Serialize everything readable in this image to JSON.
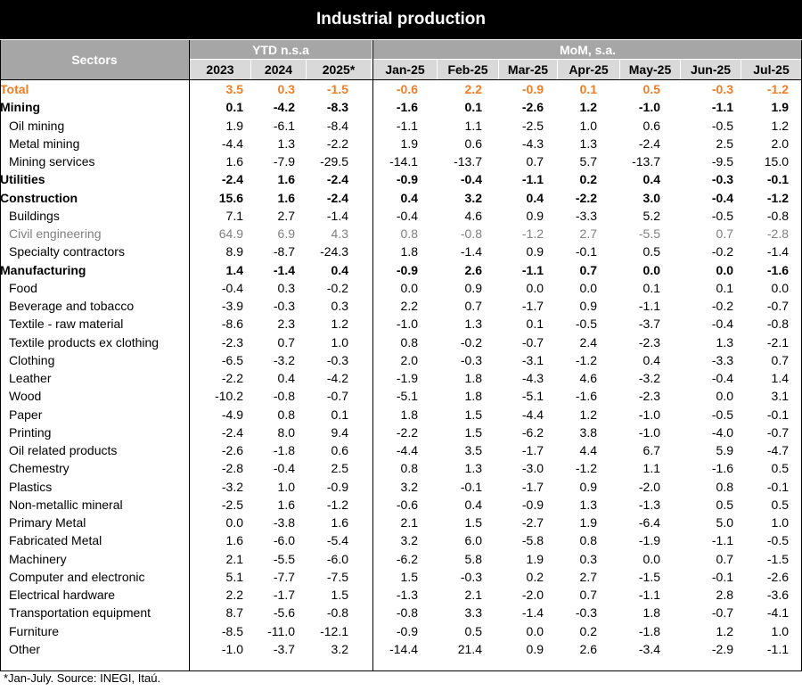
{
  "title": "Industrial production",
  "header": {
    "sectors": "Sectors",
    "ytd_group": "YTD n.s.a",
    "mom_group": "MoM, s.a.",
    "ytd_years": [
      "2023",
      "2024",
      "2025*"
    ],
    "mom_months": [
      "Jan-25",
      "Feb-25",
      "Mar-25",
      "Apr-25",
      "May-25",
      "Jun-25",
      "Jul-25"
    ]
  },
  "rows": [
    {
      "label": "Total",
      "style": "total",
      "ytd": [
        "3.5",
        "0.3",
        "-1.5"
      ],
      "mom": [
        "-0.6",
        "2.2",
        "-0.9",
        "0.1",
        "0.5",
        "-0.3",
        "-1.2"
      ]
    },
    {
      "label": "Mining",
      "style": "bold",
      "ytd": [
        "0.1",
        "-4.2",
        "-8.3"
      ],
      "mom": [
        "-1.6",
        "0.1",
        "-2.6",
        "1.2",
        "-1.0",
        "-1.1",
        "1.9"
      ]
    },
    {
      "label": "Oil mining",
      "style": "sub",
      "ytd": [
        "1.9",
        "-6.1",
        "-8.4"
      ],
      "mom": [
        "-1.1",
        "1.1",
        "-2.5",
        "1.0",
        "0.6",
        "-0.5",
        "1.2"
      ]
    },
    {
      "label": "Metal mining",
      "style": "sub",
      "ytd": [
        "-4.4",
        "1.3",
        "-2.2"
      ],
      "mom": [
        "1.9",
        "0.6",
        "-4.3",
        "1.3",
        "-2.4",
        "2.5",
        "2.0"
      ]
    },
    {
      "label": "Mining services",
      "style": "sub",
      "ytd": [
        "1.6",
        "-7.9",
        "-29.5"
      ],
      "mom": [
        "-14.1",
        "-13.7",
        "0.7",
        "5.7",
        "-13.7",
        "-9.5",
        "15.0"
      ]
    },
    {
      "label": "Utilities",
      "style": "bold",
      "ytd": [
        "-2.4",
        "1.6",
        "-2.4"
      ],
      "mom": [
        "-0.9",
        "-0.4",
        "-1.1",
        "0.2",
        "0.4",
        "-0.3",
        "-0.1"
      ]
    },
    {
      "label": "Construction",
      "style": "bold",
      "ytd": [
        "15.6",
        "1.6",
        "-2.4"
      ],
      "mom": [
        "0.4",
        "3.2",
        "0.4",
        "-2.2",
        "3.0",
        "-0.4",
        "-1.2"
      ]
    },
    {
      "label": "Buildings",
      "style": "sub",
      "ytd": [
        "7.1",
        "2.7",
        "-1.4"
      ],
      "mom": [
        "-0.4",
        "4.6",
        "0.9",
        "-3.3",
        "5.2",
        "-0.5",
        "-0.8"
      ]
    },
    {
      "label": "Civil engineering",
      "style": "sub-muted",
      "ytd": [
        "64.9",
        "6.9",
        "4.3"
      ],
      "mom": [
        "0.8",
        "-0.8",
        "-1.2",
        "2.7",
        "-5.5",
        "0.7",
        "-2.8"
      ]
    },
    {
      "label": "Specialty contractors",
      "style": "sub",
      "ytd": [
        "8.9",
        "-8.7",
        "-24.3"
      ],
      "mom": [
        "1.8",
        "-1.4",
        "0.9",
        "-0.1",
        "0.5",
        "-0.2",
        "-1.4"
      ]
    },
    {
      "label": "Manufacturing",
      "style": "bold",
      "ytd": [
        "1.4",
        "-1.4",
        "0.4"
      ],
      "mom": [
        "-0.9",
        "2.6",
        "-1.1",
        "0.7",
        "0.0",
        "0.0",
        "-1.6"
      ]
    },
    {
      "label": "Food",
      "style": "sub",
      "ytd": [
        "-0.4",
        "0.3",
        "-0.2"
      ],
      "mom": [
        "0.0",
        "0.9",
        "0.0",
        "0.0",
        "0.1",
        "0.1",
        "0.0"
      ]
    },
    {
      "label": "Beverage and tobacco",
      "style": "sub",
      "ytd": [
        "-3.9",
        "-0.3",
        "0.3"
      ],
      "mom": [
        "2.2",
        "0.7",
        "-1.7",
        "0.9",
        "-1.1",
        "-0.2",
        "-0.7"
      ]
    },
    {
      "label": "Textile - raw material",
      "style": "sub",
      "ytd": [
        "-8.6",
        "2.3",
        "1.2"
      ],
      "mom": [
        "-1.0",
        "1.3",
        "0.1",
        "-0.5",
        "-3.7",
        "-0.4",
        "-0.8"
      ]
    },
    {
      "label": "Textile products ex clothing",
      "style": "sub",
      "ytd": [
        "-2.3",
        "0.7",
        "1.0"
      ],
      "mom": [
        "0.8",
        "-0.2",
        "-0.7",
        "2.4",
        "-2.3",
        "1.3",
        "-2.1"
      ]
    },
    {
      "label": "Clothing",
      "style": "sub",
      "ytd": [
        "-6.5",
        "-3.2",
        "-0.3"
      ],
      "mom": [
        "2.0",
        "-0.3",
        "-3.1",
        "-1.2",
        "0.4",
        "-3.3",
        "0.7"
      ]
    },
    {
      "label": "Leather",
      "style": "sub",
      "ytd": [
        "-2.2",
        "0.4",
        "-4.2"
      ],
      "mom": [
        "-1.9",
        "1.8",
        "-4.3",
        "4.6",
        "-3.2",
        "-0.4",
        "1.4"
      ]
    },
    {
      "label": "Wood",
      "style": "sub",
      "ytd": [
        "-10.2",
        "-0.8",
        "-0.7"
      ],
      "mom": [
        "-5.1",
        "1.8",
        "-5.1",
        "-1.6",
        "-2.3",
        "0.0",
        "3.1"
      ]
    },
    {
      "label": "Paper",
      "style": "sub",
      "ytd": [
        "-4.9",
        "0.8",
        "0.1"
      ],
      "mom": [
        "1.8",
        "1.5",
        "-4.4",
        "1.2",
        "-1.0",
        "-0.5",
        "-0.1"
      ]
    },
    {
      "label": "Printing",
      "style": "sub",
      "ytd": [
        "-2.4",
        "8.0",
        "9.4"
      ],
      "mom": [
        "-2.2",
        "1.5",
        "-6.2",
        "3.8",
        "-1.0",
        "-4.0",
        "-0.7"
      ]
    },
    {
      "label": "Oil related products",
      "style": "sub",
      "ytd": [
        "-2.6",
        "-1.8",
        "0.6"
      ],
      "mom": [
        "-4.4",
        "3.5",
        "-1.7",
        "4.4",
        "6.7",
        "5.9",
        "-4.7"
      ]
    },
    {
      "label": "Chemestry",
      "style": "sub",
      "ytd": [
        "-2.8",
        "-0.4",
        "2.5"
      ],
      "mom": [
        "0.8",
        "1.3",
        "-3.0",
        "-1.2",
        "1.1",
        "-1.6",
        "0.5"
      ]
    },
    {
      "label": "Plastics",
      "style": "sub",
      "ytd": [
        "-3.2",
        "1.0",
        "-0.9"
      ],
      "mom": [
        "3.2",
        "-0.1",
        "-1.7",
        "0.9",
        "-2.0",
        "0.8",
        "-0.1"
      ]
    },
    {
      "label": "Non-metallic mineral",
      "style": "sub",
      "ytd": [
        "-2.5",
        "1.6",
        "-1.2"
      ],
      "mom": [
        "-0.6",
        "0.4",
        "-0.9",
        "1.3",
        "-1.3",
        "0.5",
        "0.5"
      ]
    },
    {
      "label": "Primary Metal",
      "style": "sub",
      "ytd": [
        "0.0",
        "-3.8",
        "1.6"
      ],
      "mom": [
        "2.1",
        "1.5",
        "-2.7",
        "1.9",
        "-6.4",
        "5.0",
        "1.0"
      ]
    },
    {
      "label": "Fabricated Metal",
      "style": "sub",
      "ytd": [
        "1.6",
        "-6.0",
        "-5.4"
      ],
      "mom": [
        "3.2",
        "6.0",
        "-5.8",
        "0.8",
        "-1.9",
        "-1.1",
        "-0.5"
      ]
    },
    {
      "label": "Machinery",
      "style": "sub",
      "ytd": [
        "2.1",
        "-5.5",
        "-6.0"
      ],
      "mom": [
        "-6.2",
        "5.8",
        "1.9",
        "0.3",
        "0.0",
        "0.7",
        "-1.5"
      ]
    },
    {
      "label": "Computer and electronic",
      "style": "sub",
      "ytd": [
        "5.1",
        "-7.7",
        "-7.5"
      ],
      "mom": [
        "1.5",
        "-0.3",
        "0.2",
        "2.7",
        "-1.5",
        "-0.1",
        "-2.6"
      ]
    },
    {
      "label": "Electrical hardware",
      "style": "sub",
      "ytd": [
        "2.2",
        "-1.7",
        "1.5"
      ],
      "mom": [
        "-1.3",
        "2.1",
        "-2.0",
        "0.7",
        "-1.1",
        "2.8",
        "-3.6"
      ]
    },
    {
      "label": "Transportation equipment",
      "style": "sub",
      "ytd": [
        "8.7",
        "-5.6",
        "-0.8"
      ],
      "mom": [
        "-0.8",
        "3.3",
        "-1.4",
        "-0.3",
        "1.8",
        "-0.7",
        "-4.1"
      ]
    },
    {
      "label": "Furniture",
      "style": "sub",
      "ytd": [
        "-8.5",
        "-11.0",
        "-12.1"
      ],
      "mom": [
        "-0.9",
        "0.5",
        "0.0",
        "0.2",
        "-1.8",
        "1.2",
        "1.0"
      ]
    },
    {
      "label": "Other",
      "style": "sub",
      "ytd": [
        "-1.0",
        "-3.7",
        "3.2"
      ],
      "mom": [
        "-14.4",
        "21.4",
        "0.9",
        "2.6",
        "-3.4",
        "-2.9",
        "-1.1"
      ]
    }
  ],
  "footnote": "*Jan-July. Source: INEGI, Itaú."
}
